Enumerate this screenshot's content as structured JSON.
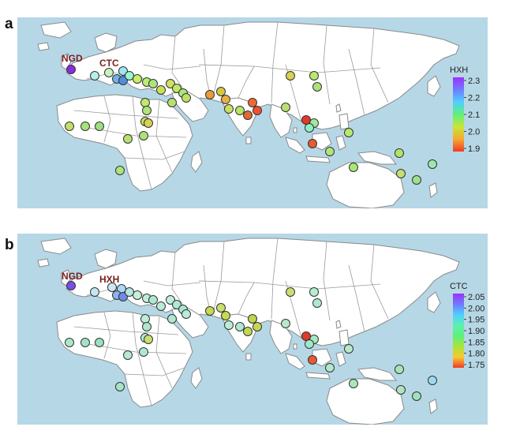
{
  "panels": [
    {
      "letter": "a",
      "legend": {
        "title": "HXH",
        "ticks": [
          "2.3",
          "2.2",
          "2.1",
          "2.0",
          "1.9"
        ],
        "colors": [
          "#9b30ff",
          "#6f7bff",
          "#4fd0ff",
          "#5ef07a",
          "#c8e53a",
          "#f7a830",
          "#f03a2a"
        ]
      },
      "site_labels": [
        "NGD",
        "CTC"
      ],
      "points": [
        {
          "color": "#8a2be2"
        },
        {
          "color": "#b2f0e8"
        },
        {
          "color": "#c9f2c0"
        },
        {
          "color": "#9be6f0"
        },
        {
          "color": "#6fb2e6"
        },
        {
          "color": "#4f8ee0"
        },
        {
          "color": "#9bf4d0"
        },
        {
          "color": "#c8f060"
        },
        {
          "color": "#b9ee70"
        },
        {
          "color": "#aee37a"
        },
        {
          "color": "#c8e058"
        },
        {
          "color": "#d0e060"
        },
        {
          "color": "#bfe868"
        },
        {
          "color": "#a8e878"
        },
        {
          "color": "#c0e064"
        },
        {
          "color": "#b8e070"
        },
        {
          "color": "#c0e870"
        },
        {
          "color": "#b0e47a"
        },
        {
          "color": "#c8e060"
        },
        {
          "color": "#b0e078"
        },
        {
          "color": "#d8c840"
        },
        {
          "color": "#e89b3a"
        },
        {
          "color": "#e8b040"
        },
        {
          "color": "#ef6a30"
        },
        {
          "color": "#f05030"
        },
        {
          "color": "#c8e060"
        },
        {
          "color": "#b8e468"
        },
        {
          "color": "#e06a30"
        },
        {
          "color": "#b8e070"
        },
        {
          "color": "#d8d050"
        },
        {
          "color": "#b8e870"
        },
        {
          "color": "#aee078"
        },
        {
          "color": "#c0e068"
        },
        {
          "color": "#a8e07a"
        },
        {
          "color": "#9ee080"
        },
        {
          "color": "#d8d050"
        },
        {
          "color": "#b8e070"
        },
        {
          "color": "#aee47c"
        },
        {
          "color": "#e85a30"
        },
        {
          "color": "#b0e478"
        },
        {
          "color": "#9ee8a0"
        },
        {
          "color": "#8ef0c0"
        },
        {
          "color": "#b8e870"
        },
        {
          "color": "#e03a2a"
        },
        {
          "color": "#a8e870"
        },
        {
          "color": "#b0e468"
        },
        {
          "color": "#c0e070"
        },
        {
          "color": "#9ee090"
        },
        {
          "color": "#9ee8b0"
        }
      ]
    },
    {
      "letter": "b",
      "legend": {
        "title": "CTC",
        "ticks": [
          "2.05",
          "2.00",
          "1.95",
          "1.90",
          "1.85",
          "1.80",
          "1.75"
        ],
        "colors": [
          "#9b30ff",
          "#6f7bff",
          "#4fd0ff",
          "#5ef0b0",
          "#5ef07a",
          "#a8e53a",
          "#f7c830",
          "#f03a2a"
        ]
      },
      "site_labels": [
        "NGD",
        "HXH"
      ],
      "points": [
        {
          "color": "#7a4de6"
        },
        {
          "color": "#c0e8f0"
        },
        {
          "color": "#cfe8f8"
        },
        {
          "color": "#a8d8f8"
        },
        {
          "color": "#8ab2f0"
        },
        {
          "color": "#6f8ae6"
        },
        {
          "color": "#b6e6e0"
        },
        {
          "color": "#c6f0d8"
        },
        {
          "color": "#bfeed8"
        },
        {
          "color": "#aee8d0"
        },
        {
          "color": "#b8ecd8"
        },
        {
          "color": "#c0eedc"
        },
        {
          "color": "#b0e8d4"
        },
        {
          "color": "#a8e6d0"
        },
        {
          "color": "#b8eed8"
        },
        {
          "color": "#b0e8d0"
        },
        {
          "color": "#bdecd8"
        },
        {
          "color": "#b0e6d0"
        },
        {
          "color": "#b8eed8"
        },
        {
          "color": "#aee8d0"
        },
        {
          "color": "#c8e070"
        },
        {
          "color": "#c8d850"
        },
        {
          "color": "#c8d850"
        },
        {
          "color": "#bcd848"
        },
        {
          "color": "#c8d850"
        },
        {
          "color": "#b8eed8"
        },
        {
          "color": "#b0e8d0"
        },
        {
          "color": "#c0d850"
        },
        {
          "color": "#b8e8d0"
        },
        {
          "color": "#c8e070"
        },
        {
          "color": "#b8eed0"
        },
        {
          "color": "#aee8d0"
        },
        {
          "color": "#a8e8c8"
        },
        {
          "color": "#a0e4c8"
        },
        {
          "color": "#98e0c0"
        },
        {
          "color": "#c8e070"
        },
        {
          "color": "#b8e8d0"
        },
        {
          "color": "#a8e4c8"
        },
        {
          "color": "#e85a30"
        },
        {
          "color": "#b0e8c8"
        },
        {
          "color": "#a8e8c0"
        },
        {
          "color": "#a0e8c8"
        },
        {
          "color": "#b8e8c8"
        },
        {
          "color": "#e03a2a"
        },
        {
          "color": "#a8e8b8"
        },
        {
          "color": "#a8e4b8"
        },
        {
          "color": "#b0e4c0"
        },
        {
          "color": "#a0e0c0"
        },
        {
          "color": "#9ed8f0"
        }
      ]
    }
  ]
}
